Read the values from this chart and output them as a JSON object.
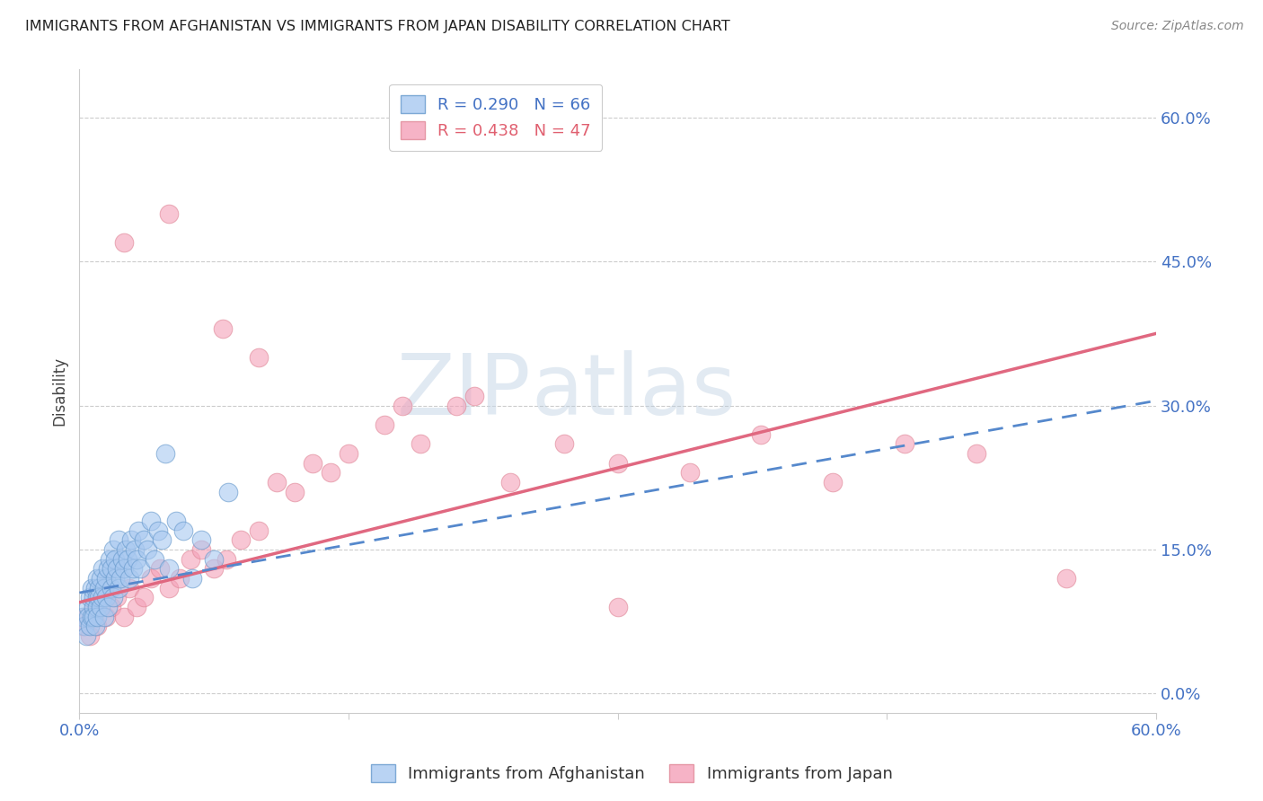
{
  "title": "IMMIGRANTS FROM AFGHANISTAN VS IMMIGRANTS FROM JAPAN DISABILITY CORRELATION CHART",
  "source": "Source: ZipAtlas.com",
  "ylabel": "Disability",
  "ytick_labels": [
    "0.0%",
    "15.0%",
    "30.0%",
    "45.0%",
    "60.0%"
  ],
  "ytick_values": [
    0.0,
    0.15,
    0.3,
    0.45,
    0.6
  ],
  "xlim": [
    0.0,
    0.6
  ],
  "ylim": [
    -0.02,
    0.65
  ],
  "watermark_zip": "ZIP",
  "watermark_atlas": "atlas",
  "color_afghanistan": "#a8c8f0",
  "color_japan": "#f4a0b8",
  "color_line_afghanistan": "#5588cc",
  "color_line_japan": "#e06880",
  "line_af_x0": 0.0,
  "line_af_y0": 0.105,
  "line_af_x1": 0.6,
  "line_af_y1": 0.305,
  "line_jp_x0": 0.0,
  "line_jp_y0": 0.095,
  "line_jp_x1": 0.6,
  "line_jp_y1": 0.375,
  "afghanistan_x": [
    0.002,
    0.003,
    0.004,
    0.005,
    0.005,
    0.006,
    0.006,
    0.007,
    0.007,
    0.008,
    0.008,
    0.008,
    0.009,
    0.009,
    0.01,
    0.01,
    0.01,
    0.01,
    0.011,
    0.011,
    0.012,
    0.012,
    0.013,
    0.013,
    0.014,
    0.014,
    0.015,
    0.015,
    0.016,
    0.016,
    0.017,
    0.018,
    0.018,
    0.019,
    0.019,
    0.02,
    0.02,
    0.021,
    0.022,
    0.022,
    0.023,
    0.024,
    0.025,
    0.026,
    0.027,
    0.028,
    0.029,
    0.03,
    0.031,
    0.032,
    0.033,
    0.034,
    0.036,
    0.038,
    0.04,
    0.042,
    0.044,
    0.046,
    0.048,
    0.05,
    0.054,
    0.058,
    0.063,
    0.068,
    0.075,
    0.083
  ],
  "afghanistan_y": [
    0.08,
    0.07,
    0.06,
    0.09,
    0.08,
    0.1,
    0.07,
    0.08,
    0.11,
    0.09,
    0.1,
    0.08,
    0.11,
    0.07,
    0.1,
    0.09,
    0.12,
    0.08,
    0.11,
    0.1,
    0.09,
    0.12,
    0.1,
    0.13,
    0.11,
    0.08,
    0.12,
    0.1,
    0.13,
    0.09,
    0.14,
    0.11,
    0.13,
    0.1,
    0.15,
    0.12,
    0.14,
    0.13,
    0.11,
    0.16,
    0.12,
    0.14,
    0.13,
    0.15,
    0.14,
    0.12,
    0.16,
    0.13,
    0.15,
    0.14,
    0.17,
    0.13,
    0.16,
    0.15,
    0.18,
    0.14,
    0.17,
    0.16,
    0.25,
    0.13,
    0.18,
    0.17,
    0.12,
    0.16,
    0.14,
    0.21
  ],
  "japan_x": [
    0.002,
    0.004,
    0.006,
    0.008,
    0.01,
    0.012,
    0.015,
    0.018,
    0.021,
    0.025,
    0.028,
    0.032,
    0.036,
    0.04,
    0.045,
    0.05,
    0.056,
    0.062,
    0.068,
    0.075,
    0.082,
    0.09,
    0.1,
    0.11,
    0.12,
    0.13,
    0.14,
    0.15,
    0.17,
    0.19,
    0.21,
    0.24,
    0.27,
    0.3,
    0.34,
    0.38,
    0.42,
    0.46,
    0.5,
    0.3,
    0.18,
    0.1,
    0.08,
    0.22,
    0.05,
    0.025,
    0.55
  ],
  "japan_y": [
    0.07,
    0.08,
    0.06,
    0.09,
    0.07,
    0.1,
    0.08,
    0.09,
    0.1,
    0.08,
    0.11,
    0.09,
    0.1,
    0.12,
    0.13,
    0.11,
    0.12,
    0.14,
    0.15,
    0.13,
    0.14,
    0.16,
    0.17,
    0.22,
    0.21,
    0.24,
    0.23,
    0.25,
    0.28,
    0.26,
    0.3,
    0.22,
    0.26,
    0.24,
    0.23,
    0.27,
    0.22,
    0.26,
    0.25,
    0.09,
    0.3,
    0.35,
    0.38,
    0.31,
    0.5,
    0.47,
    0.12
  ]
}
